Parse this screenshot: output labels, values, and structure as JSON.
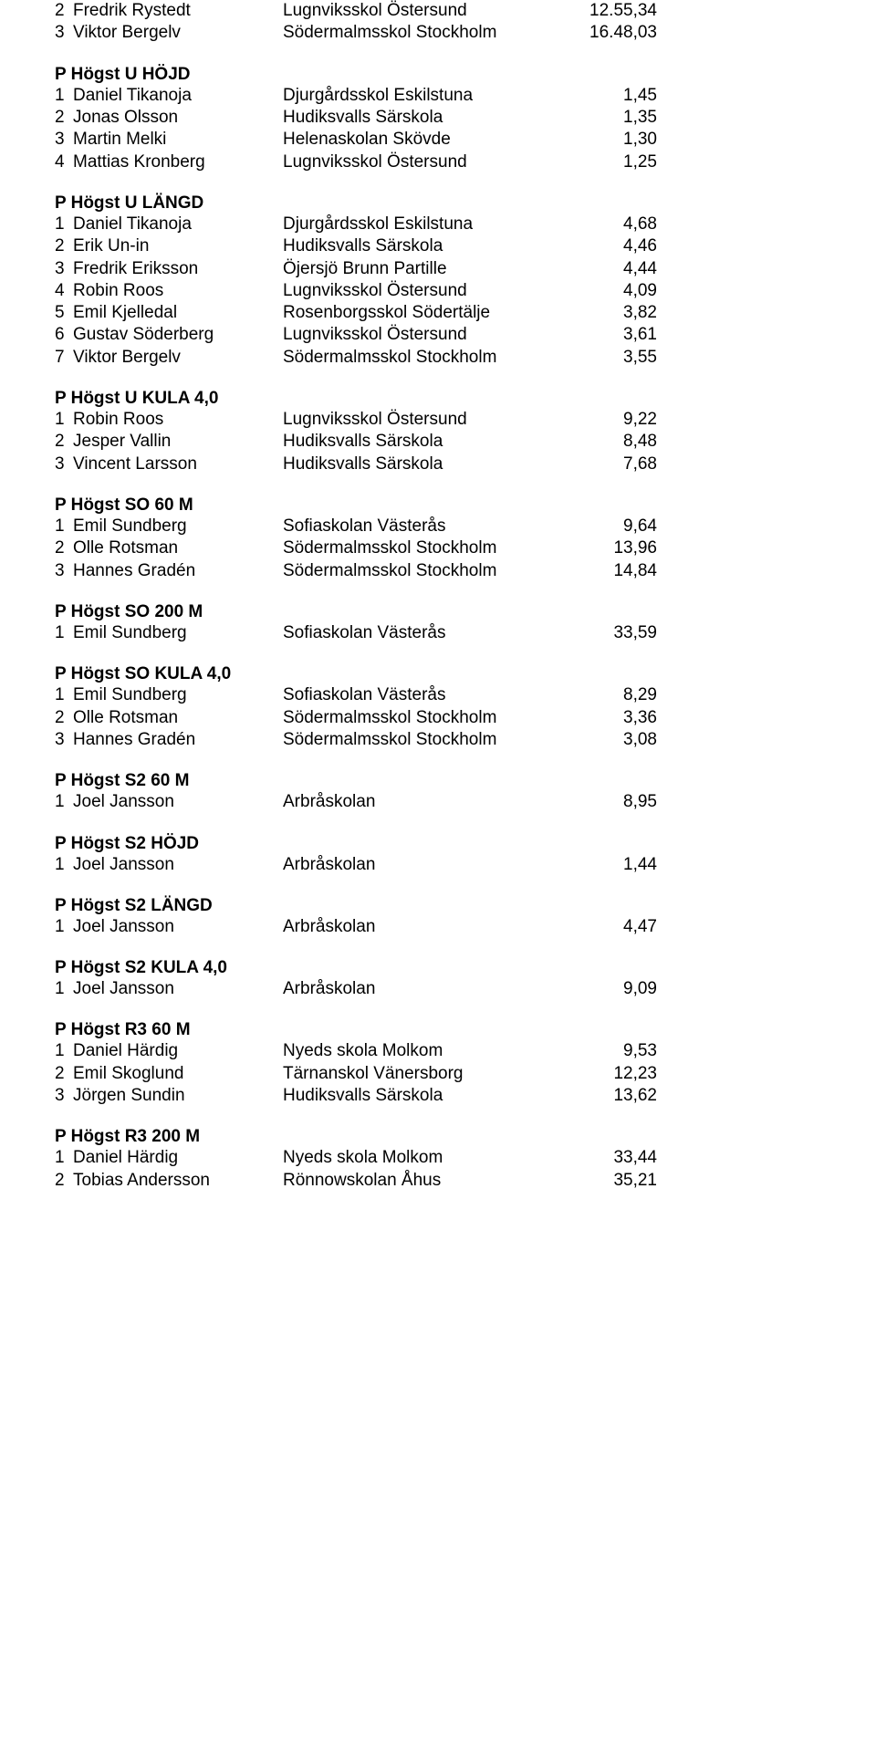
{
  "top_rows": [
    {
      "rank": "2",
      "name": "Fredrik Rystedt",
      "school": "Lugnviksskol Östersund",
      "result": "12.55,34"
    },
    {
      "rank": "3",
      "name": "Viktor Bergelv",
      "school": "Södermalmsskol Stockholm",
      "result": "16.48,03"
    }
  ],
  "sections": [
    {
      "title": "P Högst U  HÖJD",
      "rows": [
        {
          "rank": "1",
          "name": "Daniel Tikanoja",
          "school": "Djurgårdsskol Eskilstuna",
          "result": "1,45"
        },
        {
          "rank": "2",
          "name": "Jonas Olsson",
          "school": "Hudiksvalls Särskola",
          "result": "1,35"
        },
        {
          "rank": "3",
          "name": "Martin Melki",
          "school": "Helenaskolan Skövde",
          "result": "1,30"
        },
        {
          "rank": "4",
          "name": "Mattias Kronberg",
          "school": "Lugnviksskol Östersund",
          "result": "1,25"
        }
      ]
    },
    {
      "title": "P Högst U  LÄNGD",
      "rows": [
        {
          "rank": "1",
          "name": "Daniel Tikanoja",
          "school": "Djurgårdsskol Eskilstuna",
          "result": "4,68"
        },
        {
          "rank": "2",
          "name": "Erik Un-in",
          "school": "Hudiksvalls Särskola",
          "result": "4,46"
        },
        {
          "rank": "3",
          "name": "Fredrik Eriksson",
          "school": "Öjersjö Brunn Partille",
          "result": "4,44"
        },
        {
          "rank": "4",
          "name": "Robin Roos",
          "school": "Lugnviksskol Östersund",
          "result": "4,09"
        },
        {
          "rank": "5",
          "name": "Emil Kjelledal",
          "school": "Rosenborgsskol Södertälje",
          "result": "3,82"
        },
        {
          "rank": "6",
          "name": "Gustav Söderberg",
          "school": "Lugnviksskol Östersund",
          "result": "3,61"
        },
        {
          "rank": "7",
          "name": "Viktor Bergelv",
          "school": "Södermalmsskol Stockholm",
          "result": "3,55"
        }
      ]
    },
    {
      "title": "P Högst U  KULA 4,0",
      "rows": [
        {
          "rank": "1",
          "name": "Robin Roos",
          "school": "Lugnviksskol Östersund",
          "result": "9,22"
        },
        {
          "rank": "2",
          "name": "Jesper Vallin",
          "school": "Hudiksvalls Särskola",
          "result": "8,48"
        },
        {
          "rank": "3",
          "name": "Vincent Larsson",
          "school": "Hudiksvalls Särskola",
          "result": "7,68"
        }
      ]
    },
    {
      "title": "P Högst SO  60 M",
      "rows": [
        {
          "rank": "1",
          "name": "Emil Sundberg",
          "school": "Sofiaskolan Västerås",
          "result": "9,64"
        },
        {
          "rank": "2",
          "name": "Olle Rotsman",
          "school": "Södermalmsskol Stockholm",
          "result": "13,96"
        },
        {
          "rank": "3",
          "name": "Hannes Gradén",
          "school": "Södermalmsskol Stockholm",
          "result": "14,84"
        }
      ]
    },
    {
      "title": "P Högst SO  200 M",
      "rows": [
        {
          "rank": "1",
          "name": "Emil Sundberg",
          "school": "Sofiaskolan Västerås",
          "result": "33,59"
        }
      ]
    },
    {
      "title": "P Högst SO  KULA 4,0",
      "rows": [
        {
          "rank": "1",
          "name": "Emil Sundberg",
          "school": "Sofiaskolan Västerås",
          "result": "8,29"
        },
        {
          "rank": "2",
          "name": "Olle Rotsman",
          "school": "Södermalmsskol Stockholm",
          "result": "3,36"
        },
        {
          "rank": "3",
          "name": "Hannes Gradén",
          "school": "Södermalmsskol Stockholm",
          "result": "3,08"
        }
      ]
    },
    {
      "title": "P Högst S2  60 M",
      "rows": [
        {
          "rank": "1",
          "name": "Joel Jansson",
          "school": "Arbråskolan",
          "result": "8,95"
        }
      ]
    },
    {
      "title": "P Högst S2  HÖJD",
      "rows": [
        {
          "rank": "1",
          "name": "Joel Jansson",
          "school": "Arbråskolan",
          "result": "1,44"
        }
      ]
    },
    {
      "title": "P Högst S2  LÄNGD",
      "rows": [
        {
          "rank": "1",
          "name": "Joel Jansson",
          "school": "Arbråskolan",
          "result": "4,47"
        }
      ]
    },
    {
      "title": "P Högst S2  KULA 4,0",
      "rows": [
        {
          "rank": "1",
          "name": "Joel Jansson",
          "school": "Arbråskolan",
          "result": "9,09"
        }
      ]
    },
    {
      "title": "P Högst R3  60 M",
      "rows": [
        {
          "rank": "1",
          "name": "Daniel Härdig",
          "school": "Nyeds skola Molkom",
          "result": "9,53"
        },
        {
          "rank": "2",
          "name": "Emil Skoglund",
          "school": "Tärnanskol Vänersborg",
          "result": "12,23"
        },
        {
          "rank": "3",
          "name": "Jörgen Sundin",
          "school": "Hudiksvalls Särskola",
          "result": "13,62"
        }
      ]
    },
    {
      "title": "P Högst R3  200 M",
      "rows": [
        {
          "rank": "1",
          "name": "Daniel Härdig",
          "school": "Nyeds skola Molkom",
          "result": "33,44"
        },
        {
          "rank": "2",
          "name": "Tobias Andersson",
          "school": "Rönnowskolan Åhus",
          "result": "35,21"
        }
      ]
    }
  ]
}
